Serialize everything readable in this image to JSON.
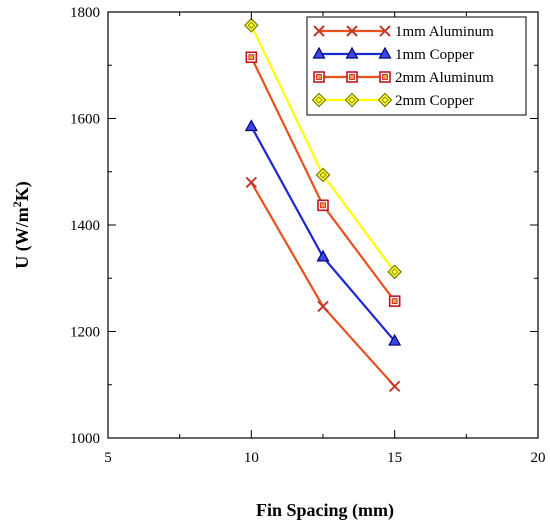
{
  "chart_data": {
    "type": "line",
    "title": "",
    "xlabel": "Fin Spacing (mm)",
    "ylabel_parts": [
      "U (W/m",
      "2",
      "K)"
    ],
    "xlim": [
      5,
      20
    ],
    "ylim": [
      1000,
      1800
    ],
    "x_ticks": [
      5,
      10,
      15,
      20
    ],
    "y_ticks": [
      1000,
      1200,
      1400,
      1600,
      1800
    ],
    "grid": false,
    "legend_position": "top-right",
    "x": [
      10,
      12.5,
      15
    ],
    "series": [
      {
        "name": "1mm Aluminum",
        "values": [
          1480,
          1247,
          1097
        ],
        "line_color": "#e8501e",
        "marker": "x",
        "marker_stroke": "#c0392b",
        "marker_fill": "none"
      },
      {
        "name": "1mm Copper",
        "values": [
          1585,
          1340,
          1182
        ],
        "line_color": "#1c28d0",
        "marker": "triangle",
        "marker_stroke": "#000080",
        "marker_fill": "#3b49e0"
      },
      {
        "name": "2mm Aluminum",
        "values": [
          1715,
          1437,
          1257
        ],
        "line_color": "#e8501e",
        "marker": "square",
        "marker_stroke": "#c0171f",
        "marker_fill": "#f0a040"
      },
      {
        "name": "2mm Copper",
        "values": [
          1775,
          1494,
          1312
        ],
        "line_color": "#ffff00",
        "marker": "diamond",
        "marker_stroke": "#7a7a00",
        "marker_fill": "#ffff33"
      }
    ]
  }
}
